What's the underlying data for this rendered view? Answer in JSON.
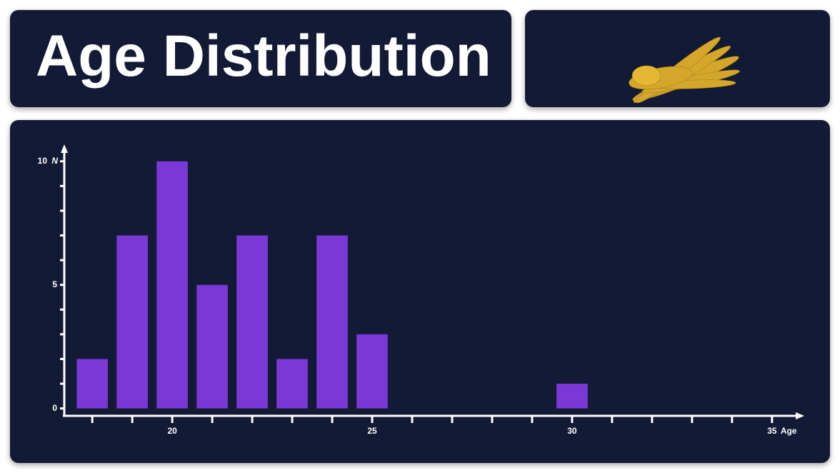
{
  "header": {
    "title": "Age Distribution"
  },
  "chart_data": {
    "type": "bar",
    "xlabel": "Age",
    "ylabel": "N",
    "x": [
      18,
      19,
      20,
      21,
      22,
      23,
      24,
      25,
      30
    ],
    "values": [
      2,
      7,
      10,
      5,
      7,
      2,
      7,
      3,
      1
    ],
    "color": "#7a38d6",
    "xlim": [
      17.3,
      35.7
    ],
    "xticks": [
      20,
      25,
      30,
      35
    ],
    "xminorticks": [
      18,
      19,
      21,
      22,
      23,
      24,
      26,
      27,
      28,
      29,
      31,
      32,
      33,
      34
    ],
    "ylim": [
      -0.3,
      10.6
    ],
    "yticks": [
      0,
      5,
      10
    ],
    "yminorticks": [
      1,
      2,
      3,
      4,
      6,
      7,
      8,
      9
    ]
  }
}
